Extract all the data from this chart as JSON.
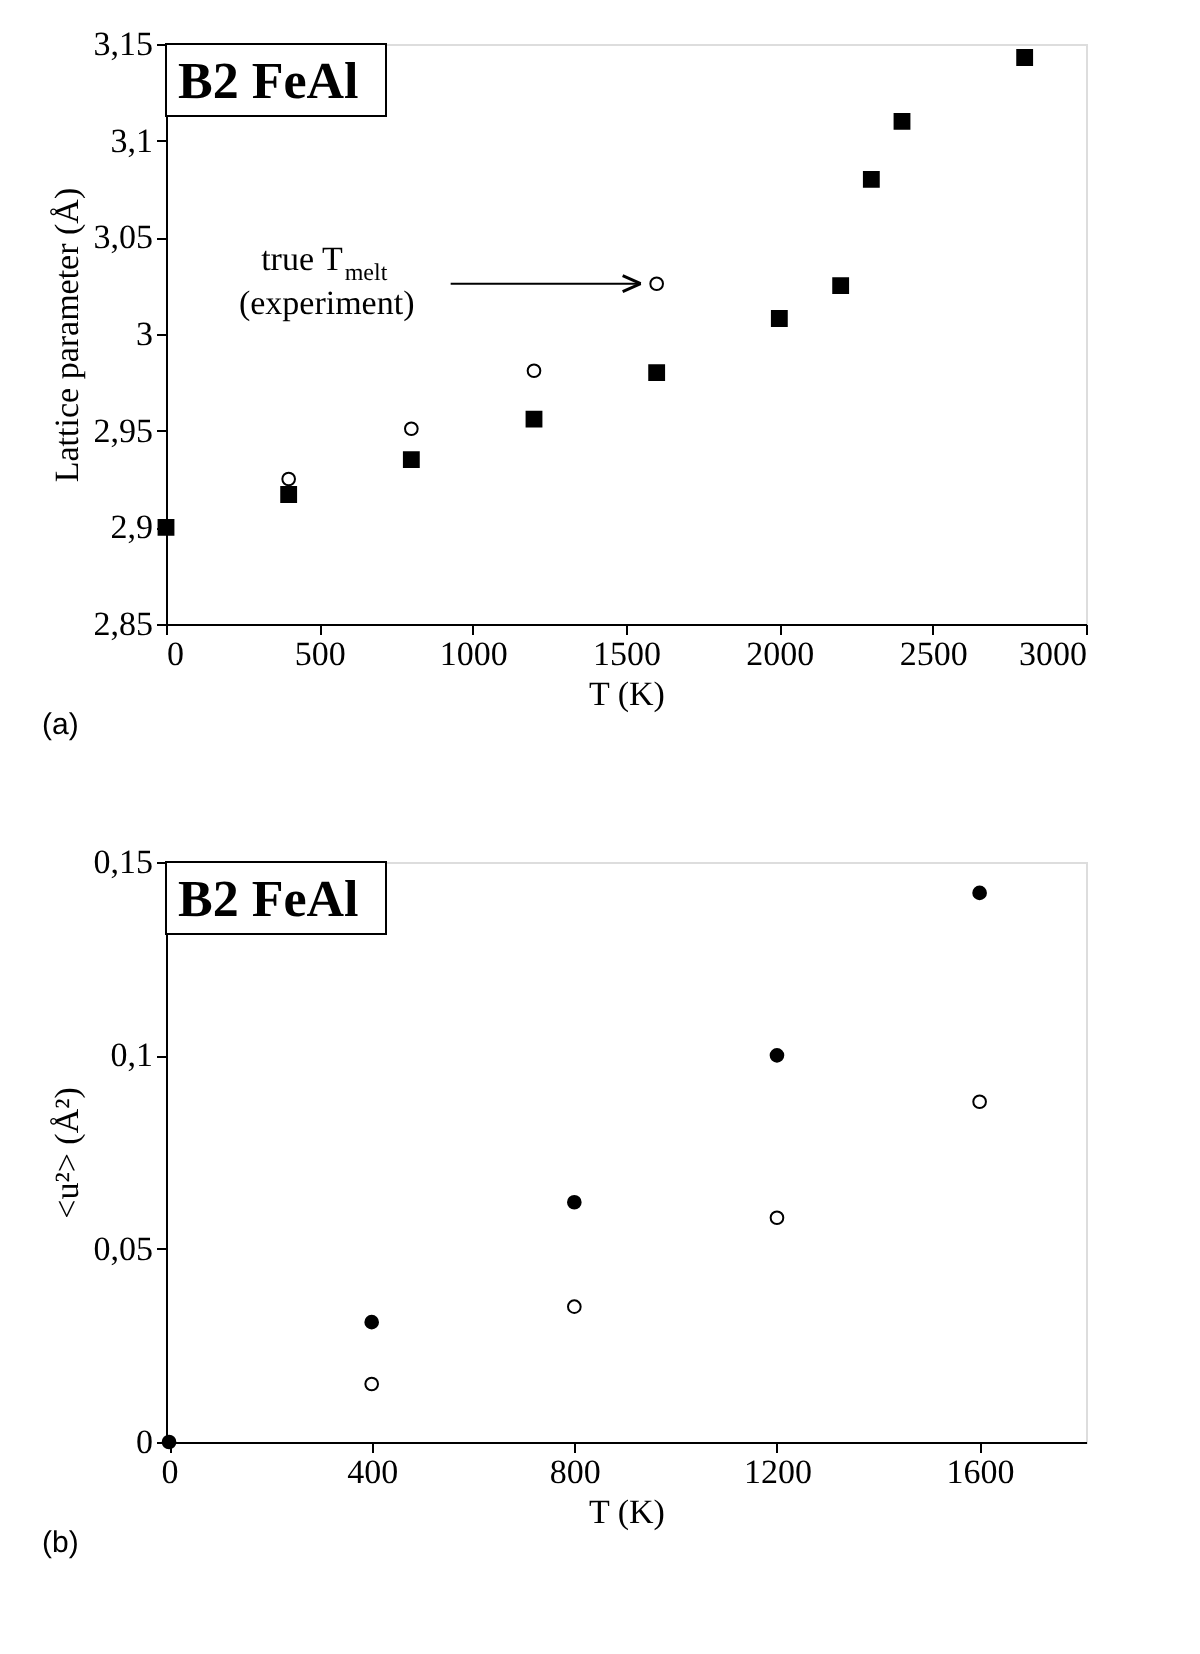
{
  "chart_data": [
    {
      "type": "scatter",
      "title": "B2 FeAl",
      "xlabel": "T (K)",
      "ylabel": "Lattice parameter (Å)",
      "xlim": [
        0,
        3000
      ],
      "xticks": [
        0,
        500,
        1000,
        1500,
        2000,
        2500,
        3000
      ],
      "ylim": [
        2.85,
        3.15
      ],
      "yticks": [
        {
          "value": 2.85,
          "label": "2,85"
        },
        {
          "value": 2.9,
          "label": "2,9"
        },
        {
          "value": 2.95,
          "label": "2,95"
        },
        3,
        {
          "value": 3.05,
          "label": "3,05"
        },
        {
          "value": 3.1,
          "label": "3,1"
        },
        {
          "value": 3.15,
          "label": "3,15"
        }
      ],
      "grid": false,
      "series": [
        {
          "color": "#000000",
          "marker": "square",
          "x": [
            0,
            400,
            800,
            1200,
            1600,
            2000,
            2200,
            2300,
            2400,
            2800
          ],
          "values": [
            2.9,
            2.917,
            2.935,
            2.956,
            2.98,
            3.008,
            3.025,
            3.08,
            3.11,
            3.143
          ]
        },
        {
          "color": "#000000",
          "marker": "circle",
          "x": [
            400,
            800,
            1200,
            1600
          ],
          "values": [
            2.925,
            2.951,
            2.981,
            3.026
          ]
        }
      ],
      "annotations": [
        {
          "text": "true T$_{melt}$\n(experiment)",
          "x": 1600,
          "y": 3.026
        },
        "(a)"
      ]
    },
    {
      "type": "scatter",
      "title": "B2 FeAl",
      "xlabel": "T (K)",
      "ylabel": "<u²> (Å²)",
      "xlim": [
        -6,
        1810
      ],
      "xticks": [
        0,
        400,
        800,
        1200,
        1600
      ],
      "ylim": [
        0,
        0.15
      ],
      "yticks": [
        0,
        {
          "value": 0.05,
          "label": "0,05"
        },
        {
          "value": 0.1,
          "label": "0,1"
        },
        {
          "value": 0.15,
          "label": "0,15"
        }
      ],
      "grid": false,
      "series": [
        {
          "color": "#000000",
          "marker": "circle",
          "x": [
            0,
            400,
            800,
            1200,
            1600
          ],
          "values": [
            0,
            0.031,
            0.062,
            0.1,
            0.142
          ]
        },
        {
          "color": "#000000",
          "marker": "circle",
          "x": [
            400,
            800,
            1200,
            1600
          ],
          "values": [
            0.015,
            0.035,
            0.058,
            0.088
          ]
        }
      ],
      "annotations": [
        "(b)"
      ]
    }
  ]
}
